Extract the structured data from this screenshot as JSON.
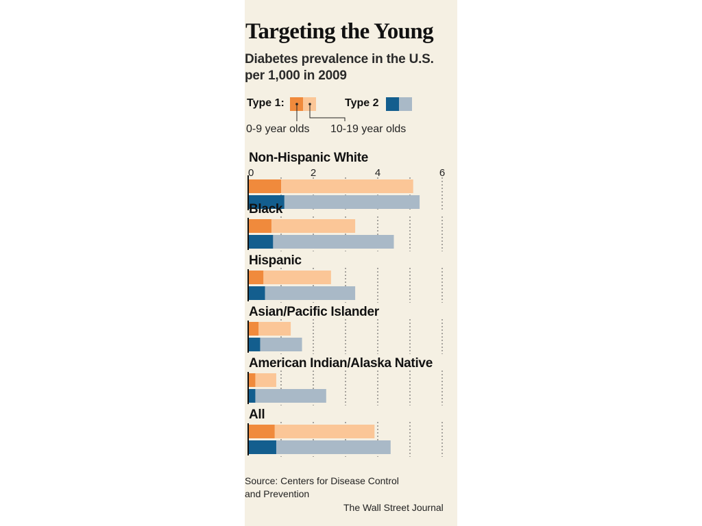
{
  "header": {
    "title": "Targeting the Young",
    "subtitle_line1": "Diabetes prevalence in the U.S.",
    "subtitle_line2": "per 1,000 in 2009"
  },
  "legend": {
    "type1_label": "Type 1:",
    "type2_label": "Type 2",
    "age_group_1": "0-9 year olds",
    "age_group_2": "10-19 year olds"
  },
  "colors": {
    "type1_0_9": "#f08a3c",
    "type1_10_19": "#fbc697",
    "type2_0_9": "#135e8e",
    "type2_10_19": "#a9b9c7",
    "background": "#f5f0e3"
  },
  "chart_data": {
    "type": "bar",
    "orientation": "horizontal",
    "xlim": [
      0,
      6
    ],
    "ticks": [
      "0",
      "2",
      "4",
      "6"
    ],
    "categories": [
      "Non-Hispanic White",
      "Black",
      "Hispanic",
      "Asian/Pacific Islander",
      "American Indian/Alaska Native",
      "All"
    ],
    "series": [
      {
        "name": "Type 1: 0-9 year olds",
        "values": [
          1.0,
          0.7,
          0.45,
          0.3,
          0.2,
          0.8
        ]
      },
      {
        "name": "Type 1: 10-19 year olds",
        "values": [
          5.1,
          3.3,
          2.55,
          1.3,
          0.85,
          3.9
        ]
      },
      {
        "name": "Type 2: 0-9 year olds",
        "values": [
          1.1,
          0.75,
          0.5,
          0.35,
          0.2,
          0.85
        ]
      },
      {
        "name": "Type 2: 10-19 year olds",
        "values": [
          5.3,
          4.5,
          3.3,
          1.65,
          2.4,
          4.4
        ]
      }
    ],
    "grid": true
  },
  "footer": {
    "source_line1": "Source: Centers for Disease Control",
    "source_line2": "and Prevention",
    "credit": "The Wall Street Journal"
  }
}
